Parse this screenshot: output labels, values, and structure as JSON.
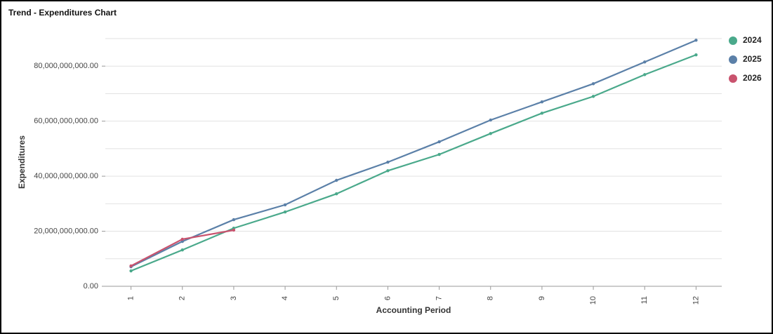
{
  "chart_data": {
    "type": "line",
    "title": "Trend - Expenditures Chart",
    "x_label": "Accounting Period",
    "y_label": "Expenditures",
    "categories": [
      "1",
      "2",
      "3",
      "4",
      "5",
      "6",
      "7",
      "8",
      "9",
      "10",
      "11",
      "12"
    ],
    "series": [
      {
        "name": "2024",
        "color": "#4aa98b",
        "values": [
          5600000000,
          13200000000,
          21100000000,
          27000000000,
          33600000000,
          42000000000,
          47900000000,
          55500000000,
          62900000000,
          69000000000,
          76900000000,
          84100000000
        ]
      },
      {
        "name": "2025",
        "color": "#5b80a8",
        "values": [
          7100000000,
          16300000000,
          24200000000,
          29600000000,
          38500000000,
          45100000000,
          52500000000,
          60400000000,
          67000000000,
          73600000000,
          81500000000,
          89400000000
        ]
      },
      {
        "name": "2026",
        "color": "#c9536e",
        "values": [
          7400000000,
          17100000000,
          20400000000,
          null,
          null,
          null,
          null,
          null,
          null,
          null,
          null,
          null
        ]
      }
    ],
    "ylim": [
      0,
      90000000000
    ],
    "yticks": [
      {
        "value": 0,
        "label": "0.00"
      },
      {
        "value": 20000000000,
        "label": "20,000,000,000.00"
      },
      {
        "value": 40000000000,
        "label": "40,000,000,000.00"
      },
      {
        "value": 60000000000,
        "label": "60,000,000,000.00"
      },
      {
        "value": 80000000000,
        "label": "80,000,000,000.00"
      }
    ],
    "ygrid": [
      0,
      10000000000,
      20000000000,
      30000000000,
      40000000000,
      50000000000,
      60000000000,
      70000000000,
      80000000000,
      90000000000
    ],
    "grid": true,
    "legend": "top-right"
  }
}
